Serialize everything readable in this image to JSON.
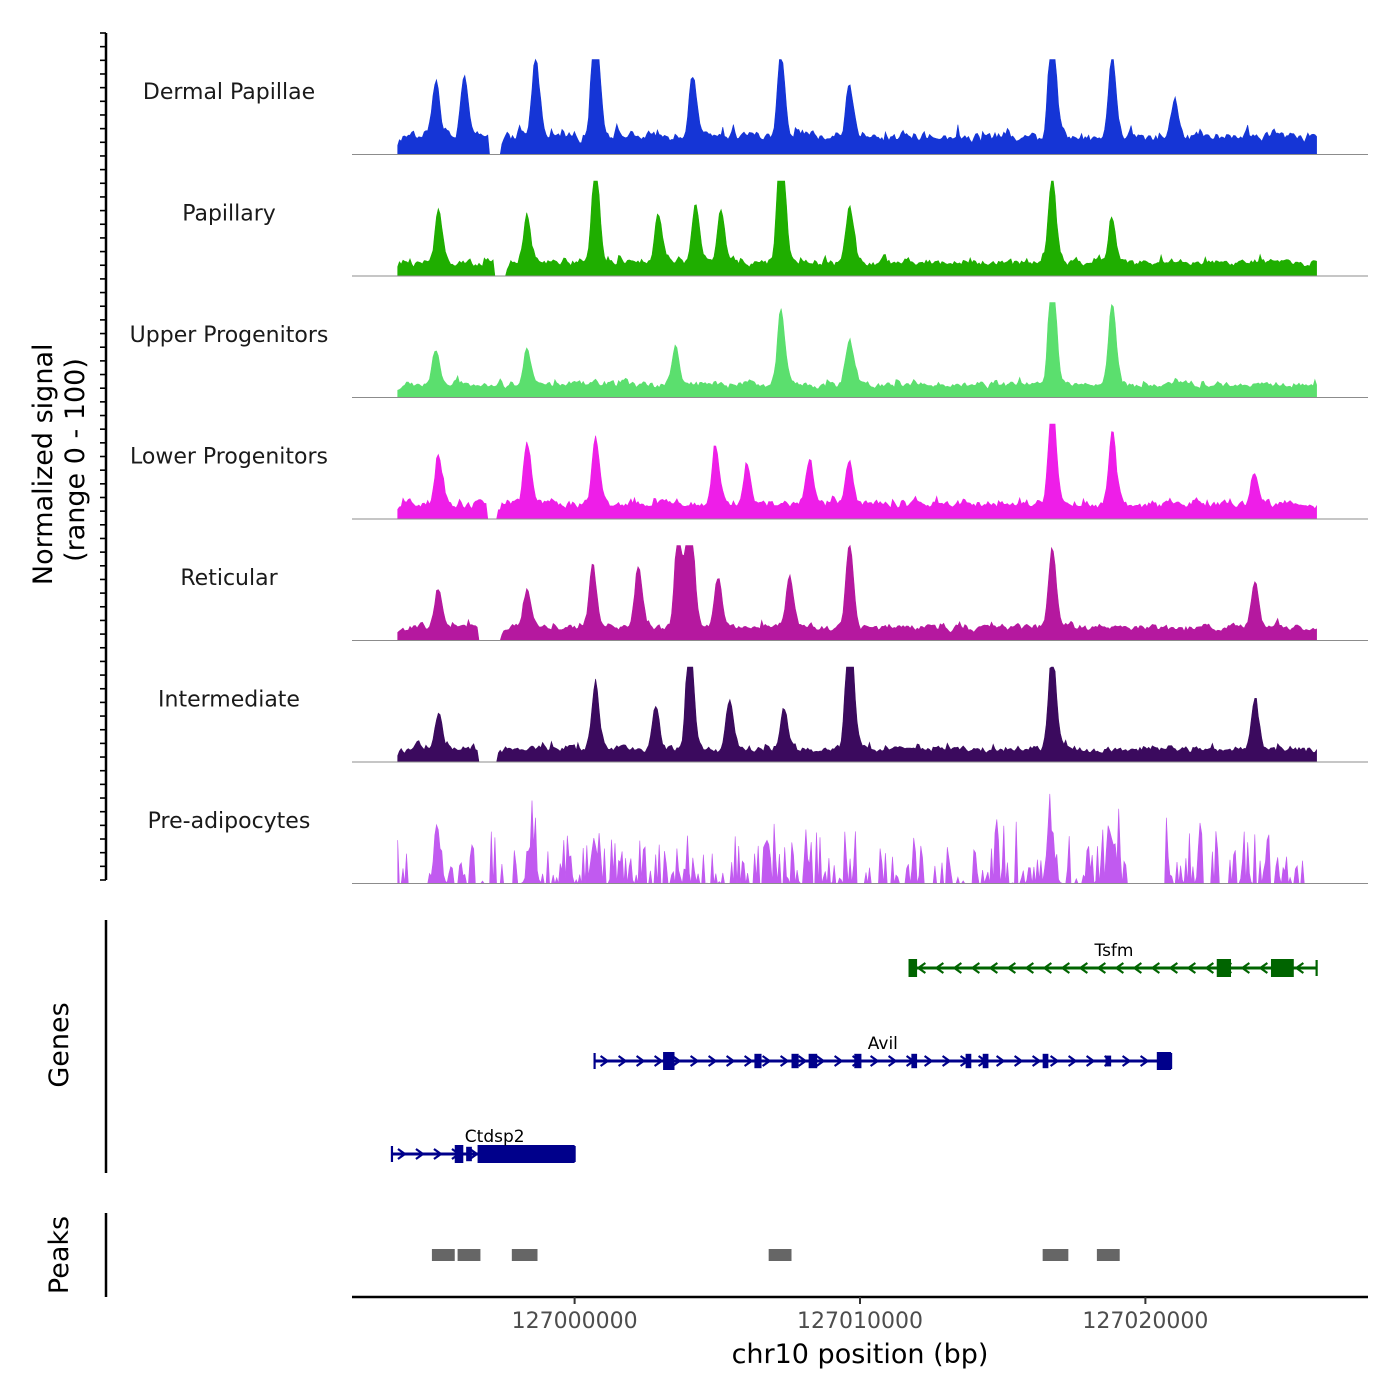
{
  "chart_data": {
    "type": "area",
    "title": "",
    "xlabel": "chr10 position (bp)",
    "ylabel": "Normalized signal\n(range 0 - 100)",
    "ylabel_lines": [
      "Normalized signal",
      "(range 0 - 100)"
    ],
    "xlim": [
      126992200,
      127027800
    ],
    "ylim": [
      0,
      100
    ],
    "x_ticks": [
      {
        "value": 127000000,
        "label": "127000000"
      },
      {
        "value": 127010000,
        "label": "127010000"
      },
      {
        "value": 127020000,
        "label": "127020000"
      }
    ],
    "signal_range": [
      126993800,
      127026000
    ],
    "series": [
      {
        "name": "Dermal Papillae",
        "color": "#1535d6",
        "base": 16,
        "noise": 14,
        "gaps": [
          [
            126997000,
            126997400
          ]
        ],
        "peaks": [
          [
            126995100,
            38
          ],
          [
            126996100,
            40
          ],
          [
            126998600,
            55
          ],
          [
            127000700,
            100
          ],
          [
            127004100,
            42
          ],
          [
            127007200,
            55
          ],
          [
            127009600,
            35
          ],
          [
            127016700,
            85
          ],
          [
            127018800,
            55
          ],
          [
            127021000,
            28
          ]
        ]
      },
      {
        "name": "Papillary",
        "color": "#1fae00",
        "base": 12,
        "noise": 10,
        "gaps": [
          [
            126997200,
            126997600
          ]
        ],
        "peaks": [
          [
            126995200,
            35
          ],
          [
            126998300,
            30
          ],
          [
            127000700,
            72
          ],
          [
            127002900,
            32
          ],
          [
            127004200,
            40
          ],
          [
            127005100,
            35
          ],
          [
            127007200,
            100
          ],
          [
            127009600,
            38
          ],
          [
            127016700,
            60
          ],
          [
            127018800,
            30
          ]
        ]
      },
      {
        "name": "Upper Progenitors",
        "color": "#5bdf6e",
        "base": 12,
        "noise": 9,
        "gaps": [],
        "peaks": [
          [
            126995100,
            22
          ],
          [
            126998300,
            25
          ],
          [
            127003500,
            25
          ],
          [
            127007200,
            50
          ],
          [
            127009600,
            30
          ],
          [
            127016700,
            85
          ],
          [
            127018800,
            55
          ]
        ]
      },
      {
        "name": "Lower Progenitors",
        "color": "#ee1ee8",
        "base": 14,
        "noise": 10,
        "gaps": [
          [
            126996900,
            126997300
          ]
        ],
        "peaks": [
          [
            126995200,
            30
          ],
          [
            126998300,
            42
          ],
          [
            127000700,
            45
          ],
          [
            127004900,
            38
          ],
          [
            127006000,
            25
          ],
          [
            127008200,
            32
          ],
          [
            127009600,
            30
          ],
          [
            127016700,
            72
          ],
          [
            127018800,
            50
          ],
          [
            127023800,
            22
          ]
        ]
      },
      {
        "name": "Reticular",
        "color": "#b5189f",
        "base": 12,
        "noise": 9,
        "gaps": [
          [
            126996600,
            126997400
          ]
        ],
        "peaks": [
          [
            126995200,
            25
          ],
          [
            126998300,
            25
          ],
          [
            127000600,
            42
          ],
          [
            127002200,
            42
          ],
          [
            127003600,
            68
          ],
          [
            127004000,
            100
          ],
          [
            127005000,
            32
          ],
          [
            127007500,
            35
          ],
          [
            127009600,
            58
          ],
          [
            127016700,
            55
          ],
          [
            127023800,
            30
          ]
        ]
      },
      {
        "name": "Intermediate",
        "color": "#3b0a5e",
        "base": 12,
        "noise": 9,
        "gaps": [
          [
            126996600,
            126997300
          ]
        ],
        "peaks": [
          [
            126995200,
            25
          ],
          [
            127000700,
            42
          ],
          [
            127002800,
            28
          ],
          [
            127004000,
            82
          ],
          [
            127005400,
            30
          ],
          [
            127007300,
            28
          ],
          [
            127009600,
            100
          ],
          [
            127016700,
            70
          ],
          [
            127023800,
            33
          ]
        ]
      },
      {
        "name": "Pre-adipocytes",
        "color": "#c15af0",
        "base": 0,
        "noise": 55,
        "sparse": true,
        "gaps": [
          [
            126994200,
            126994900
          ],
          [
            127019400,
            127020700
          ],
          [
            127025700,
            127026000
          ]
        ],
        "peaks": [
          [
            126995200,
            68
          ],
          [
            126998500,
            62
          ],
          [
            127000700,
            52
          ],
          [
            127016700,
            70
          ],
          [
            127018800,
            52
          ]
        ]
      }
    ],
    "genes": [
      {
        "name": "Tsfm",
        "strand": "-",
        "start": 127011800,
        "end": 127026000,
        "color": "#006400",
        "exons": [
          [
            127011700,
            127012000,
            1.0
          ],
          [
            127022500,
            127023000,
            1.0
          ],
          [
            127024400,
            127025200,
            1.0
          ]
        ]
      },
      {
        "name": "Avil",
        "strand": "+",
        "start": 127000700,
        "end": 127020900,
        "color": "#00008b",
        "exons": [
          [
            127003100,
            127003500,
            1.0
          ],
          [
            127006300,
            127006550,
            0.8
          ],
          [
            127007600,
            127007850,
            0.8
          ],
          [
            127008200,
            127008500,
            0.8
          ],
          [
            127009800,
            127010050,
            0.8
          ],
          [
            127011800,
            127012000,
            0.8
          ],
          [
            127013700,
            127013900,
            0.8
          ],
          [
            127014300,
            127014500,
            0.8
          ],
          [
            127016400,
            127016600,
            0.8
          ],
          [
            127018600,
            127018800,
            0.6
          ],
          [
            127020400,
            127020900,
            1.0
          ]
        ]
      },
      {
        "name": "Ctdsp2",
        "strand": "+",
        "start": 126993600,
        "end": 127000000,
        "color": "#00008b",
        "exons": [
          [
            126995800,
            126996100,
            1.0
          ],
          [
            126996200,
            126996400,
            0.8
          ],
          [
            126996600,
            127000000,
            1.0
          ]
        ]
      }
    ],
    "peaks": [
      {
        "start": 126995000,
        "end": 126995800
      },
      {
        "start": 126995900,
        "end": 126996700
      },
      {
        "start": 126997800,
        "end": 126998700
      },
      {
        "start": 127006800,
        "end": 127007600
      },
      {
        "start": 127016400,
        "end": 127017300
      },
      {
        "start": 127018300,
        "end": 127019100
      }
    ],
    "panel_titles": {
      "genes": "Genes",
      "peaks": "Peaks"
    }
  }
}
